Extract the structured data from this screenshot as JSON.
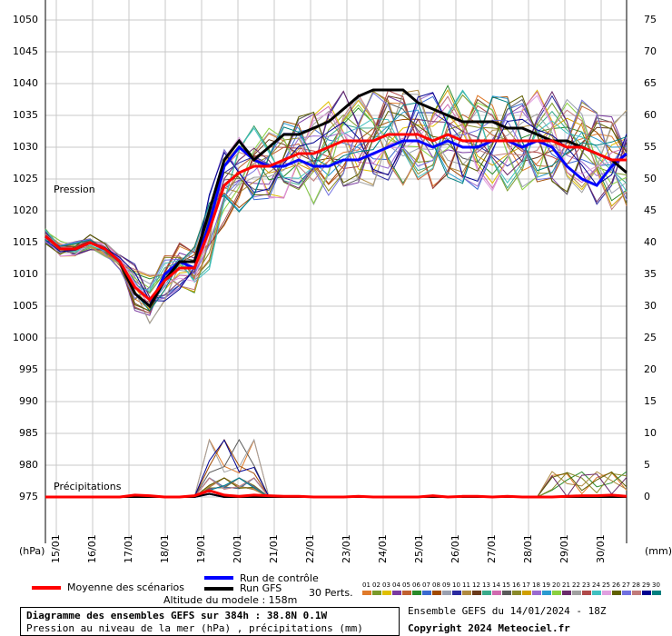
{
  "chart_data": {
    "type": "line",
    "left_axis_ticks": [
      "1050",
      "1045",
      "1040",
      "1035",
      "1030",
      "1025",
      "1020",
      "1015",
      "1010",
      "1005",
      "1000",
      "995",
      "990",
      "985",
      "980",
      "975"
    ],
    "right_axis_ticks": [
      "75",
      "70",
      "65",
      "60",
      "55",
      "50",
      "45",
      "40",
      "35",
      "30",
      "25",
      "20",
      "15",
      "10",
      "5",
      "0"
    ],
    "x_labels": [
      "15/01",
      "16/01",
      "17/01",
      "18/01",
      "19/01",
      "20/01",
      "21/01",
      "22/01",
      "23/01",
      "24/01",
      "25/01",
      "26/01",
      "27/01",
      "28/01",
      "29/01",
      "30/01"
    ],
    "left_unit": "(hPa)",
    "right_unit": "(mm)",
    "pressure_label": "Pression",
    "precip_label": "Précipitations",
    "ylim_pressure": [
      975,
      1050
    ],
    "ylim_precip": [
      0,
      75
    ],
    "mean_pressure": [
      1016,
      1014,
      1014,
      1015,
      1014,
      1012,
      1008,
      1006,
      1009,
      1011,
      1011,
      1017,
      1024,
      1026,
      1027,
      1027,
      1028,
      1029,
      1029,
      1030,
      1031,
      1031,
      1031,
      1032,
      1032,
      1032,
      1031,
      1032,
      1031,
      1031,
      1031,
      1031,
      1031,
      1031,
      1031,
      1030,
      1030,
      1029,
      1028,
      1028
    ],
    "control_pressure": [
      1016,
      1014,
      1014,
      1015,
      1014,
      1012,
      1007,
      1005,
      1010,
      1012,
      1011,
      1018,
      1027,
      1030,
      1028,
      1027,
      1027,
      1028,
      1027,
      1027,
      1028,
      1028,
      1029,
      1030,
      1031,
      1031,
      1030,
      1031,
      1030,
      1030,
      1031,
      1031,
      1030,
      1031,
      1030,
      1027,
      1025,
      1024,
      1027,
      1029
    ],
    "gfs_pressure": [
      1016,
      1014,
      1014,
      1015,
      1014,
      1012,
      1007,
      1005,
      1009,
      1012,
      1012,
      1020,
      1028,
      1031,
      1028,
      1030,
      1032,
      1032,
      1033,
      1034,
      1036,
      1038,
      1039,
      1039,
      1039,
      1037,
      1036,
      1035,
      1034,
      1034,
      1034,
      1033,
      1033,
      1032,
      1031,
      1031,
      1030,
      1029,
      1028,
      1026
    ],
    "mean_precip": [
      0,
      0,
      0,
      0,
      0,
      0,
      0.3,
      0.2,
      0,
      0,
      0.2,
      1,
      0.3,
      0.1,
      0.3,
      0.2,
      0.1,
      0.1,
      0,
      0,
      0,
      0.1,
      0,
      0,
      0,
      0,
      0.2,
      0,
      0.1,
      0.1,
      0,
      0.1,
      0,
      0,
      0,
      0.1,
      0.2,
      0.2,
      0.3,
      0.1
    ],
    "gfs_precip": [
      0,
      0,
      0,
      0,
      0,
      0,
      0,
      0,
      0,
      0,
      0,
      0.5,
      0,
      0,
      0,
      0,
      0,
      0,
      0,
      0,
      0,
      0,
      0,
      0,
      0,
      0,
      0,
      0,
      0,
      0,
      0,
      0,
      0,
      0,
      0,
      0,
      0,
      0,
      0,
      0
    ],
    "control_precip": [
      0,
      0,
      0,
      0,
      0,
      0,
      0,
      0,
      0,
      0,
      0,
      0.5,
      0,
      0,
      0,
      0,
      0,
      0,
      0,
      0,
      0,
      0,
      0,
      0,
      0,
      0,
      0,
      0,
      0,
      0,
      0,
      0,
      0,
      0,
      0,
      0,
      0,
      0,
      0,
      0
    ],
    "member_colors": [
      "#e07a2a",
      "#7a9a2a",
      "#e0c000",
      "#7a3aa0",
      "#c06030",
      "#2a8a2a",
      "#3a6ad0",
      "#a04a00",
      "#9aa0b0",
      "#2a2aa0",
      "#b08a40",
      "#6a3a1a",
      "#3aaa8a",
      "#d06ab0",
      "#5a5a5a",
      "#8a8a2a",
      "#d0a000",
      "#9a6ad0",
      "#2a9ad0",
      "#8ad040",
      "#6a2a6a",
      "#a0a0a0",
      "#b04a4a",
      "#40c0c0",
      "#e0a0e0",
      "#606000",
      "#7070e0",
      "#c07a7a",
      "#000090",
      "#008080"
    ]
  },
  "legend": {
    "mean_label": "Moyenne des scénarios",
    "control_label": "Run de contrôle",
    "gfs_label": "Run GFS",
    "perts_label": "30 Perts.",
    "pert_numbers": [
      "01",
      "02",
      "03",
      "04",
      "05",
      "06",
      "07",
      "08",
      "09",
      "10",
      "11",
      "12",
      "13",
      "14",
      "15",
      "16",
      "17",
      "18",
      "19",
      "20",
      "21",
      "22",
      "23",
      "24",
      "25",
      "26",
      "27",
      "28",
      "29",
      "30"
    ],
    "altitude_label": "Altitude du modele : 158m",
    "mean_color": "#ff0000",
    "control_color": "#0000ff",
    "gfs_color": "#000000"
  },
  "footer": {
    "title": "Diagramme des ensembles GEFS sur 384h : 38.8N 0.1W",
    "subtitle": "Pression au niveau de la mer (hPa) , précipitations (mm)",
    "run_info": "Ensemble GEFS du 14/01/2024 - 18Z",
    "copyright": "Copyright 2024 Meteociel.fr"
  }
}
